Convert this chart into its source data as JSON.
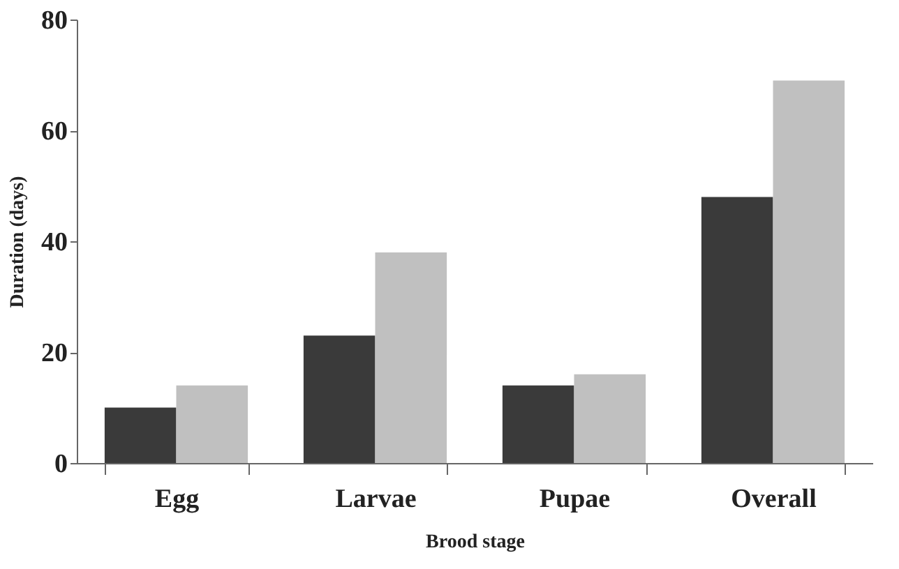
{
  "chart_data": {
    "type": "bar",
    "xlabel": "Brood stage",
    "ylabel": "Duration (days)",
    "categories": [
      "Egg",
      "Larvae",
      "Pupae",
      "Overall"
    ],
    "series": [
      {
        "color": "#3a3a3a",
        "values": [
          10,
          23,
          14,
          48
        ]
      },
      {
        "color": "#c0c0c0",
        "values": [
          14,
          38,
          16,
          69
        ]
      }
    ],
    "ylim": [
      0,
      80
    ],
    "yticks": [
      0,
      20,
      40,
      60,
      80
    ],
    "grid": false,
    "legend": false
  }
}
